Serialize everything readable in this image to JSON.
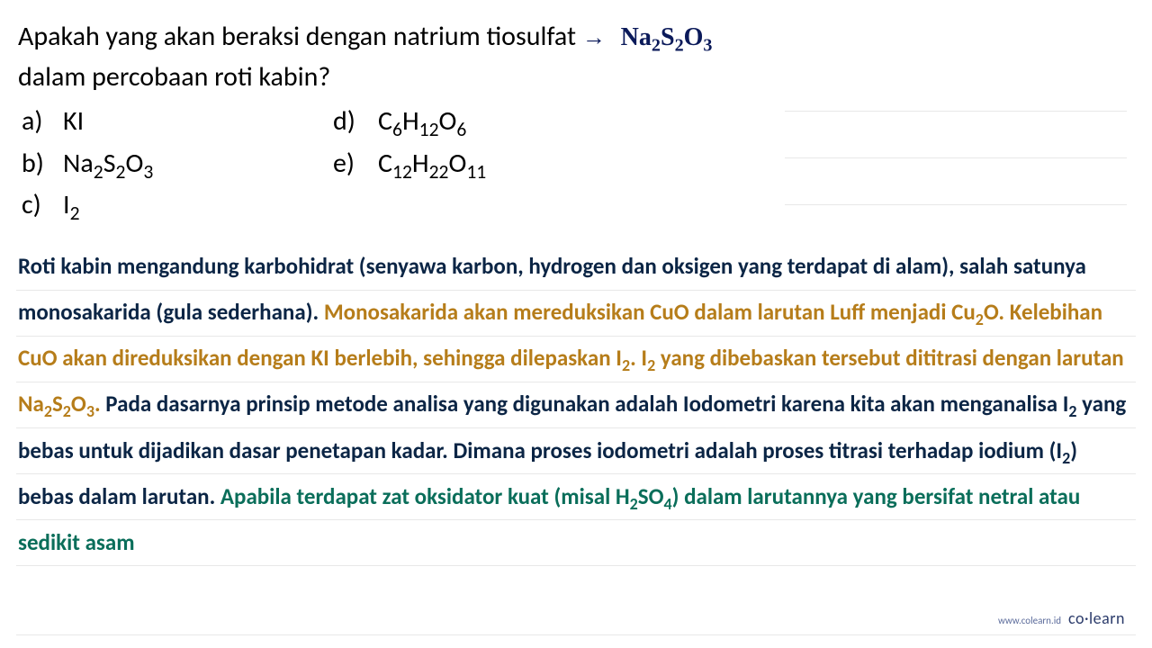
{
  "question": {
    "line1_pre": "Apakah yang akan beraksi dengan natrium tiosulfat",
    "line2": "dalam percobaan roti kabin?",
    "annotation_arrow": "→",
    "annotation_formula_html": "Na<sub>2</sub>S<sub>2</sub>O<sub>3</sub>"
  },
  "options": [
    {
      "label": "a)",
      "value_html": "KI",
      "label2": "d)",
      "value2_html": "C<sub>6</sub>H<sub>12</sub>O<sub>6</sub>"
    },
    {
      "label": "b)",
      "value_html": "Na<sub>2</sub>S<sub>2</sub>O<sub>3</sub>",
      "label2": "e)",
      "value2_html": "C<sub>12</sub>H<sub>22</sub>O<sub>11</sub>"
    },
    {
      "label": "c)",
      "value_html": "I<sub>2</sub>",
      "label2": "",
      "value2_html": ""
    }
  ],
  "explanation": {
    "segments": [
      {
        "color": "black",
        "text_html": "Roti kabin mengandung karbohidrat (senyawa karbon, hydrogen dan oksigen yang terdapat di alam), salah satunya monosakarida (gula sederhana). "
      },
      {
        "color": "orange",
        "text_html": "Monosakarida akan mereduksikan CuO dalam larutan Luff menjadi Cu<sub>2</sub>O. Kelebihan CuO akan direduksikan dengan KI berlebih, sehingga dilepaskan I<sub>2</sub>. I<sub>2</sub> yang dibebaskan tersebut dititrasi dengan  larutan Na<sub>2</sub>S<sub>2</sub>O<sub>3</sub>. "
      },
      {
        "color": "black",
        "text_html": "Pada dasarnya prinsip metode analisa yang digunakan adalah Iodometri karena kita akan menganalisa I<sub>2</sub> yang bebas untuk dijadikan dasar penetapan kadar. Dimana proses  iodometri adalah proses titrasi terhadap iodium (I<sub>2</sub>) bebas dalam larutan. "
      },
      {
        "color": "teal",
        "text_html": "Apabila terdapat zat oksidator kuat (misal H<sub>2</sub>SO<sub>4</sub>) dalam larutannya yang bersifat netral atau sedikit asam"
      }
    ]
  },
  "footer": {
    "url": "www.colearn.id",
    "brand": "co·learn"
  },
  "colors": {
    "black": "#0b2545",
    "orange": "#b67d1a",
    "teal": "#0a6e5a",
    "handwritten": "#0b1a5a",
    "rule": "#e8e8e8",
    "brand": "#2a3a6a"
  }
}
